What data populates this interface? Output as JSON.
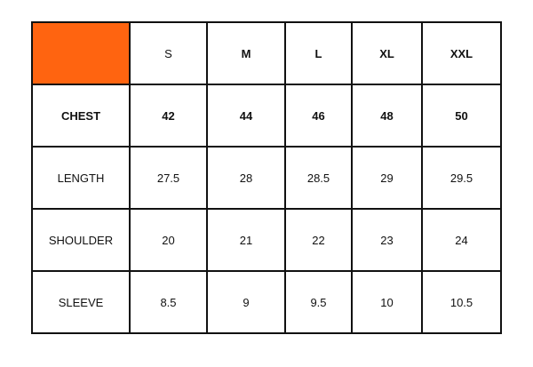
{
  "accent_color": "#ff6410",
  "headers": [
    {
      "label": "S",
      "bold": false
    },
    {
      "label": "M",
      "bold": true
    },
    {
      "label": "L",
      "bold": true
    },
    {
      "label": "XL",
      "bold": true
    },
    {
      "label": "XXL",
      "bold": true
    }
  ],
  "rows": [
    {
      "label": "CHEST",
      "bold": true,
      "values": [
        "42",
        "44",
        "46",
        "48",
        "50"
      ]
    },
    {
      "label": "LENGTH",
      "bold": false,
      "values": [
        "27.5",
        "28",
        "28.5",
        "29",
        "29.5"
      ]
    },
    {
      "label": "SHOULDER",
      "bold": false,
      "values": [
        "20",
        "21",
        "22",
        "23",
        "24"
      ]
    },
    {
      "label": "SLEEVE",
      "bold": false,
      "values": [
        "8.5",
        "9",
        "9.5",
        "10",
        "10.5"
      ]
    }
  ]
}
